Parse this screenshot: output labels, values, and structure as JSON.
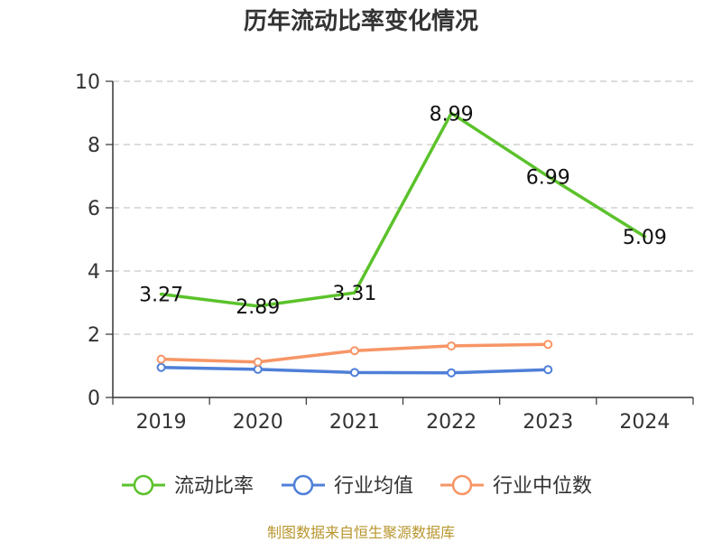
{
  "chart_data": {
    "type": "line",
    "title": "历年流动比率变化情况",
    "categories": [
      "2019",
      "2020",
      "2021",
      "2022",
      "2023",
      "2024"
    ],
    "ylim": [
      0,
      10
    ],
    "yticks": [
      "0",
      "2",
      "4",
      "6",
      "8",
      "10"
    ],
    "grid": true,
    "legend_position": "bottom",
    "series": [
      {
        "name": "流动比率",
        "color": "#5bc22b",
        "values": [
          3.27,
          2.89,
          3.31,
          8.99,
          6.99,
          5.09
        ],
        "show_labels": true,
        "markers": false
      },
      {
        "name": "行业均值",
        "color": "#4f7fd8",
        "values": [
          0.95,
          0.89,
          0.79,
          0.78,
          0.88,
          null
        ],
        "show_labels": false,
        "markers": true
      },
      {
        "name": "行业中位数",
        "color": "#f79566",
        "values": [
          1.21,
          1.12,
          1.48,
          1.63,
          1.68,
          null
        ],
        "show_labels": false,
        "markers": true
      }
    ]
  },
  "source_text": "制图数据来自恒生聚源数据库"
}
